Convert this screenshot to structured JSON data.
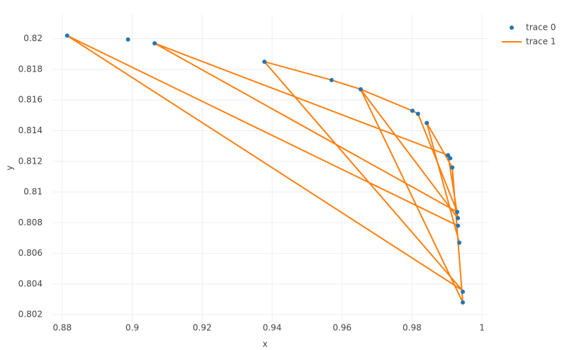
{
  "chart_data": {
    "type": "scatter",
    "xlabel": "x",
    "ylabel": "y",
    "xlim": [
      0.8774,
      1.002
    ],
    "ylim": [
      0.8015,
      0.8216
    ],
    "xticks": [
      0.88,
      0.9,
      0.92,
      0.94,
      0.96,
      0.98,
      1
    ],
    "yticks": [
      0.802,
      0.804,
      0.806,
      0.808,
      0.81,
      0.812,
      0.814,
      0.816,
      0.818,
      0.82
    ],
    "grid": true,
    "legend": "top-right",
    "series": [
      {
        "name": "trace 0",
        "mode": "markers",
        "color": "#1f77b4",
        "x": [
          0.8814,
          0.8988,
          0.9064,
          0.9378,
          0.957,
          0.9653,
          0.9801,
          0.9817,
          0.9842,
          0.9903,
          0.9909,
          0.9915,
          0.9929,
          0.9931,
          0.9931,
          0.9935,
          0.9945,
          0.9945
        ],
        "values": [
          0.8202,
          0.81995,
          0.8197,
          0.8185,
          0.8173,
          0.8167,
          0.8153,
          0.8151,
          0.8145,
          0.8124,
          0.8122,
          0.8116,
          0.8087,
          0.8083,
          0.8078,
          0.8067,
          0.8035,
          0.8028
        ]
      },
      {
        "name": "trace 1",
        "mode": "lines",
        "color": "#ff7f0e",
        "x": [
          0.9931,
          0.8814,
          0.9943,
          0.9378,
          0.957,
          0.9653,
          0.9801,
          0.9817,
          0.9929,
          0.9064,
          0.9903,
          0.9931,
          0.9653,
          0.9945,
          0.9915,
          0.9842,
          0.9935
        ],
        "values": [
          0.8078,
          0.8202,
          0.8036,
          0.8185,
          0.8173,
          0.8167,
          0.8153,
          0.8151,
          0.8087,
          0.8197,
          0.8124,
          0.8083,
          0.8167,
          0.8028,
          0.8116,
          0.8145,
          0.8067
        ]
      }
    ]
  }
}
